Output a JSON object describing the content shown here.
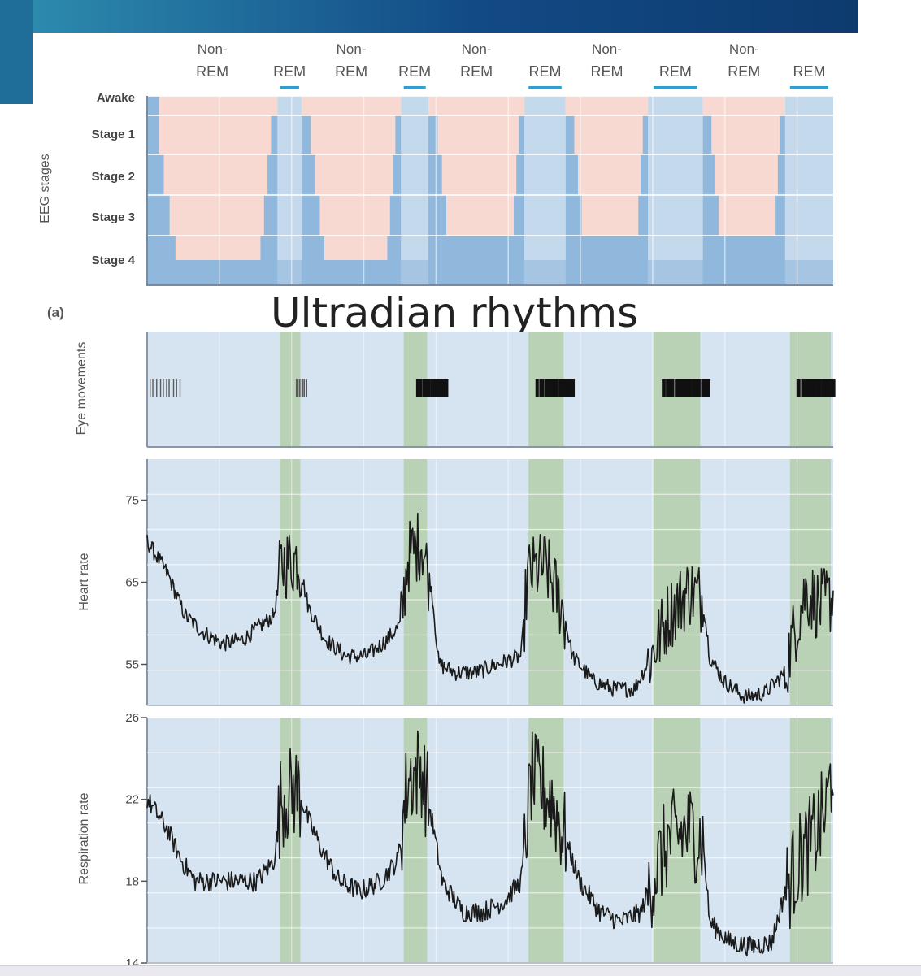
{
  "slide": {
    "title": "Ultradian rhythms",
    "panel_label": "(a)",
    "colors": {
      "banner_dark": "#0d3b6e",
      "banner_light": "#2e8fb0",
      "nonrem_fill": "#f7d9d1",
      "rem_fill": "#e9eef5",
      "stage_fill": "#8fb8dc",
      "rem_stage_fill": "#c5d9ec",
      "trace_bg": "#d6e4f1",
      "rem_band": "#b9d1b4",
      "rem_marker": "#2ea0d0",
      "trace": "#1a1a1a"
    }
  },
  "chart_data": [
    {
      "type": "step",
      "name": "hypnogram",
      "ylabel": "EEG stages",
      "stages": [
        "Awake",
        "Stage 1",
        "Stage 2",
        "Stage 3",
        "Stage 4"
      ],
      "phase_labels": [
        {
          "line1": "Non-",
          "line2": "REM"
        },
        {
          "line1": "",
          "line2": "REM"
        },
        {
          "line1": "Non-",
          "line2": "REM"
        },
        {
          "line1": "",
          "line2": "REM"
        },
        {
          "line1": "Non-",
          "line2": "REM"
        },
        {
          "line1": "",
          "line2": "REM"
        },
        {
          "line1": "Non-",
          "line2": "REM"
        },
        {
          "line1": "",
          "line2": "REM"
        },
        {
          "line1": "Non-",
          "line2": "REM"
        },
        {
          "line1": "",
          "line2": "REM"
        }
      ],
      "phases": [
        {
          "kind": "nonrem",
          "start": 0.0,
          "end": 1.9
        },
        {
          "kind": "rem",
          "start": 1.9,
          "end": 2.25
        },
        {
          "kind": "nonrem",
          "start": 2.25,
          "end": 3.7
        },
        {
          "kind": "rem",
          "start": 3.7,
          "end": 4.1
        },
        {
          "kind": "nonrem",
          "start": 4.1,
          "end": 5.5
        },
        {
          "kind": "rem",
          "start": 5.5,
          "end": 6.1
        },
        {
          "kind": "nonrem",
          "start": 6.1,
          "end": 7.3
        },
        {
          "kind": "rem",
          "start": 7.3,
          "end": 8.1
        },
        {
          "kind": "nonrem",
          "start": 8.1,
          "end": 9.3
        },
        {
          "kind": "rem",
          "start": 9.3,
          "end": 10.0
        }
      ],
      "x_range": [
        0,
        10
      ]
    },
    {
      "type": "event-raster",
      "name": "eye-movements",
      "ylabel": "Eye movements",
      "events": [
        {
          "start": 0.02,
          "end": 0.5,
          "density": 5
        },
        {
          "start": 2.15,
          "end": 2.32,
          "density": 4
        },
        {
          "start": 3.9,
          "end": 4.35,
          "density": 10
        },
        {
          "start": 5.65,
          "end": 6.2,
          "density": 11
        },
        {
          "start": 7.5,
          "end": 8.2,
          "density": 14
        },
        {
          "start": 9.45,
          "end": 10.0,
          "density": 13
        }
      ],
      "x_range": [
        0,
        10
      ]
    },
    {
      "type": "line",
      "name": "heart-rate",
      "ylabel": "Heart rate",
      "ylim": [
        50,
        80
      ],
      "yticks": [
        55,
        65,
        75
      ],
      "x_range": [
        0,
        10
      ],
      "points": [
        [
          0,
          70
        ],
        [
          0.3,
          66
        ],
        [
          0.55,
          61
        ],
        [
          0.8,
          59
        ],
        [
          1.1,
          57.5
        ],
        [
          1.4,
          58
        ],
        [
          1.7,
          60
        ],
        [
          1.85,
          61
        ],
        [
          1.95,
          67
        ],
        [
          2.2,
          68
        ],
        [
          2.35,
          62
        ],
        [
          2.6,
          58
        ],
        [
          2.9,
          56
        ],
        [
          3.2,
          56
        ],
        [
          3.5,
          58
        ],
        [
          3.7,
          60
        ],
        [
          3.8,
          68
        ],
        [
          4.0,
          70
        ],
        [
          4.15,
          64
        ],
        [
          4.25,
          55
        ],
        [
          4.5,
          54
        ],
        [
          4.8,
          54
        ],
        [
          5.1,
          55
        ],
        [
          5.45,
          56
        ],
        [
          5.55,
          66
        ],
        [
          5.8,
          67
        ],
        [
          6.05,
          62
        ],
        [
          6.2,
          56
        ],
        [
          6.5,
          53
        ],
        [
          6.8,
          52
        ],
        [
          7.1,
          52
        ],
        [
          7.35,
          56
        ],
        [
          7.6,
          61
        ],
        [
          7.9,
          64
        ],
        [
          8.1,
          63
        ],
        [
          8.2,
          56
        ],
        [
          8.4,
          53
        ],
        [
          8.7,
          51
        ],
        [
          9.0,
          51.5
        ],
        [
          9.3,
          54
        ],
        [
          9.4,
          58
        ],
        [
          9.6,
          64
        ],
        [
          9.8,
          62
        ],
        [
          9.95,
          63
        ]
      ],
      "jitter_rem": 4.5,
      "jitter_nonrem": 1.0
    },
    {
      "type": "line",
      "name": "respiration-rate",
      "ylabel": "Respiration rate",
      "ylim": [
        14,
        26
      ],
      "yticks": [
        14,
        18,
        22,
        26
      ],
      "x_range": [
        0,
        10
      ],
      "points": [
        [
          0,
          22
        ],
        [
          0.3,
          20.5
        ],
        [
          0.5,
          19
        ],
        [
          0.7,
          18
        ],
        [
          1.0,
          18
        ],
        [
          1.3,
          18
        ],
        [
          1.6,
          18
        ],
        [
          1.85,
          19
        ],
        [
          1.95,
          22
        ],
        [
          2.2,
          22.5
        ],
        [
          2.35,
          21
        ],
        [
          2.55,
          19.5
        ],
        [
          2.8,
          18
        ],
        [
          3.1,
          17.5
        ],
        [
          3.4,
          18
        ],
        [
          3.65,
          19
        ],
        [
          3.8,
          23
        ],
        [
          4.0,
          23.5
        ],
        [
          4.15,
          21
        ],
        [
          4.3,
          18
        ],
        [
          4.6,
          16.5
        ],
        [
          4.9,
          16.5
        ],
        [
          5.2,
          17
        ],
        [
          5.45,
          18
        ],
        [
          5.6,
          23
        ],
        [
          5.9,
          22
        ],
        [
          6.1,
          20
        ],
        [
          6.3,
          18
        ],
        [
          6.6,
          16.5
        ],
        [
          6.9,
          16
        ],
        [
          7.2,
          16.5
        ],
        [
          7.35,
          18
        ],
        [
          7.6,
          20
        ],
        [
          7.9,
          20.5
        ],
        [
          8.1,
          20
        ],
        [
          8.2,
          16
        ],
        [
          8.5,
          15
        ],
        [
          8.8,
          14.8
        ],
        [
          9.1,
          15
        ],
        [
          9.3,
          17.5
        ],
        [
          9.5,
          19
        ],
        [
          9.7,
          20
        ],
        [
          9.9,
          21.5
        ],
        [
          10.0,
          24
        ]
      ],
      "jitter_rem": 2.4,
      "jitter_nonrem": 0.5
    }
  ]
}
